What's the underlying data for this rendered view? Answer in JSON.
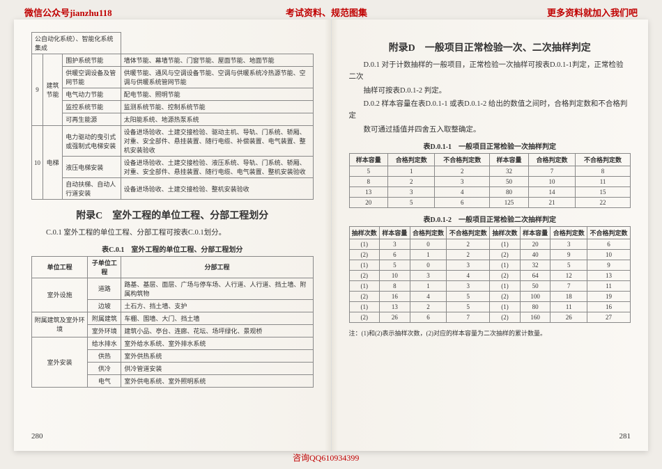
{
  "header": {
    "left": "微信公众号jianzhu118",
    "center": "考试资料、规范图集",
    "right": "更多资料就加入我们吧"
  },
  "footer": "咨询QQ610934399",
  "leftPage": {
    "pageNum": "280",
    "topTable": {
      "rows": [
        {
          "num": "",
          "cat": "",
          "sub": "",
          "content": "公自动化系统）、智能化系统集成"
        },
        {
          "num": "9",
          "cat": "建筑节能",
          "sub": "围护系统节能",
          "content": "墙体节能、幕墙节能、门窗节能、屋面节能、地面节能"
        },
        {
          "num": "",
          "cat": "",
          "sub": "供暖空调设备及管网节能",
          "content": "供暖节能、通风与空调设备节能、空调与供暖系统冷热源节能、空调与供暖系统管网节能"
        },
        {
          "num": "",
          "cat": "",
          "sub": "电气动力节能",
          "content": "配电节能、照明节能"
        },
        {
          "num": "",
          "cat": "",
          "sub": "监控系统节能",
          "content": "监测系统节能、控制系统节能"
        },
        {
          "num": "",
          "cat": "",
          "sub": "可再生能源",
          "content": "太阳能系统、地源热泵系统"
        },
        {
          "num": "10",
          "cat": "电梯",
          "sub": "电力驱动的曳引式或强制式电梯安装",
          "content": "设备进场验收、土建交接检验、驱动主机、导轨、门系统、轿厢、对重、安全部件、悬挂装置、随行电缆、补偿装置、电气装置、整机安装验收"
        },
        {
          "num": "",
          "cat": "",
          "sub": "液压电梯安装",
          "content": "设备进场验收、土建交接检验、液压系统、导轨、门系统、轿厢、对重、安全部件、悬挂装置、随行电缆、电气装置、整机安装验收"
        },
        {
          "num": "",
          "cat": "",
          "sub": "自动扶梯、自动人行道安装",
          "content": "设备进场验收、土建交接检验、整机安装验收"
        }
      ]
    },
    "appendixC": {
      "title": "附录C　室外工程的单位工程、分部工程划分",
      "para": "C.0.1 室外工程的单位工程、分部工程可按表C.0.1划分。",
      "caption": "表C.0.1　室外工程的单位工程、分部工程划分",
      "headers": [
        "单位工程",
        "子单位工程",
        "分部工程"
      ],
      "rows": [
        {
          "c1": "室外设施",
          "c2": "道路",
          "c3": "路基、基层、面层、广场与停车场、人行道、人行道、挡土墙、附属构筑物"
        },
        {
          "c1": "",
          "c2": "边坡",
          "c3": "土石方、挡土墙、支护"
        },
        {
          "c1": "附属建筑及室外环境",
          "c2": "附属建筑",
          "c3": "车棚、围墙、大门、挡土墙"
        },
        {
          "c1": "",
          "c2": "室外环境",
          "c3": "建筑小品、亭台、连廊、花坛、场坪绿化、景观桥"
        },
        {
          "c1": "室外安装",
          "c2": "给水排水",
          "c3": "室外给水系统、室外排水系统"
        },
        {
          "c1": "",
          "c2": "供热",
          "c3": "室外供热系统"
        },
        {
          "c1": "",
          "c2": "供冷",
          "c3": "供冷管道安装"
        },
        {
          "c1": "",
          "c2": "电气",
          "c3": "室外供电系统、室外照明系统"
        }
      ]
    }
  },
  "rightPage": {
    "pageNum": "281",
    "title": "附录D　一般项目正常检验一次、二次抽样判定",
    "para1": "D.0.1 对于计数抽样的一般项目，正常检验一次抽样可按表D.0.1-1判定，正常检验二次",
    "para2": "抽样可按表D.0.1-2 判定。",
    "para3": "D.0.2 样本容量在表D.0.1-1 或表D.0.1-2 给出的数值之间时，合格判定数和不合格判定",
    "para4": "数可通过插值并四舍五入取整确定。",
    "table1": {
      "caption": "表D.0.1-1　一般项目正常检验一次抽样判定",
      "headers": [
        "样本容量",
        "合格判定数",
        "不合格判定数",
        "样本容量",
        "合格判定数",
        "不合格判定数"
      ],
      "rows": [
        [
          "5",
          "1",
          "2",
          "32",
          "7",
          "8"
        ],
        [
          "8",
          "2",
          "3",
          "50",
          "10",
          "11"
        ],
        [
          "13",
          "3",
          "4",
          "80",
          "14",
          "15"
        ],
        [
          "20",
          "5",
          "6",
          "125",
          "21",
          "22"
        ]
      ]
    },
    "table2": {
      "caption": "表D.0.1-2　一般项目正常检验二次抽样判定",
      "headers": [
        "抽样次数",
        "样本容量",
        "合格判定数",
        "不合格判定数",
        "抽样次数",
        "样本容量",
        "合格判定数",
        "不合格判定数"
      ],
      "rows": [
        [
          "(1)",
          "3",
          "0",
          "2",
          "(1)",
          "20",
          "3",
          "6"
        ],
        [
          "(2)",
          "6",
          "1",
          "2",
          "(2)",
          "40",
          "9",
          "10"
        ],
        [
          "(1)",
          "5",
          "0",
          "3",
          "(1)",
          "32",
          "5",
          "9"
        ],
        [
          "(2)",
          "10",
          "3",
          "4",
          "(2)",
          "64",
          "12",
          "13"
        ],
        [
          "(1)",
          "8",
          "1",
          "3",
          "(1)",
          "50",
          "7",
          "11"
        ],
        [
          "(2)",
          "16",
          "4",
          "5",
          "(2)",
          "100",
          "18",
          "19"
        ],
        [
          "(1)",
          "13",
          "2",
          "5",
          "(1)",
          "80",
          "11",
          "16"
        ],
        [
          "(2)",
          "26",
          "6",
          "7",
          "(2)",
          "160",
          "26",
          "27"
        ]
      ]
    },
    "note": "注：(1)和(2)表示抽样次数，(2)对应的样本容量为二次抽样的累计数量。"
  }
}
